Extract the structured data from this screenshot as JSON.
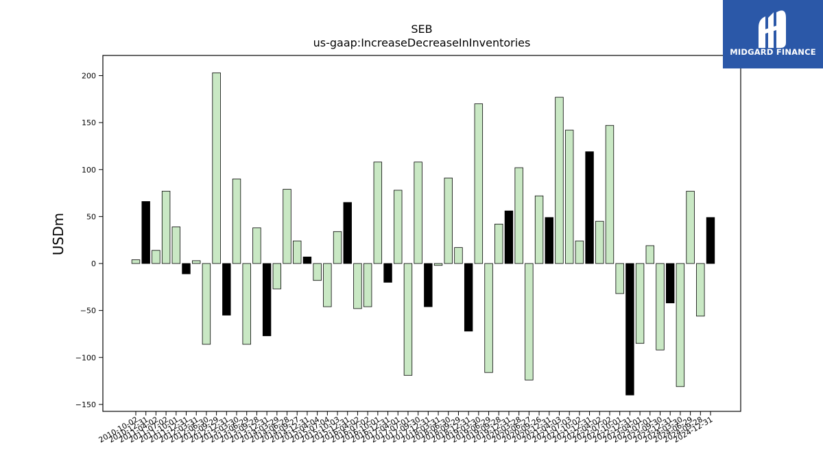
{
  "brand": {
    "name": "MIDGARD FINANCE",
    "logo_icon": "midgard-logo-icon",
    "background": "#2b58a8",
    "foreground": "#ffffff"
  },
  "chart_data": {
    "type": "bar",
    "title": "SEB",
    "subtitle": "us-gaap:IncreaseDecreaseInInventories",
    "xlabel": "",
    "ylabel": "USDm",
    "ylim": [
      -157,
      221
    ],
    "yticks": [
      -150,
      -100,
      -50,
      0,
      50,
      100,
      150,
      200
    ],
    "grid": false,
    "legend": "none",
    "colors": {
      "default": "#c9e8c4",
      "highlight": "#000000",
      "edge": "#000000"
    },
    "categories": [
      "2010-10-02",
      "2010-12-31",
      "2011-04-02",
      "2011-07-02",
      "2011-10-01",
      "2011-12-31",
      "2012-03-31",
      "2012-06-30",
      "2012-09-29",
      "2012-12-31",
      "2013-03-30",
      "2013-06-29",
      "2013-09-28",
      "2013-12-31",
      "2014-03-29",
      "2014-06-28",
      "2014-09-27",
      "2014-12-31",
      "2015-04-04",
      "2015-07-04",
      "2015-10-03",
      "2015-12-31",
      "2016-04-02",
      "2016-07-02",
      "2016-10-01",
      "2016-12-31",
      "2017-04-01",
      "2017-07-01",
      "2017-09-30",
      "2017-12-31",
      "2018-03-31",
      "2018-06-30",
      "2018-09-29",
      "2018-12-31",
      "2019-03-30",
      "2019-06-29",
      "2019-09-28",
      "2019-12-31",
      "2020-03-28",
      "2020-06-27",
      "2020-09-26",
      "2020-12-31",
      "2021-04-03",
      "2021-07-03",
      "2021-10-02",
      "2021-12-31",
      "2022-04-02",
      "2022-07-02",
      "2022-10-01",
      "2022-12-31",
      "2023-04-01",
      "2023-07-01",
      "2023-09-30",
      "2023-12-31",
      "2024-03-30",
      "2024-06-29",
      "2024-09-28",
      "2024-12-31"
    ],
    "values": [
      4,
      66,
      14,
      77,
      39,
      -11,
      3,
      -86,
      203,
      -55,
      90,
      -86,
      38,
      -77,
      -27,
      79,
      24,
      7,
      -18,
      -46,
      34,
      65,
      -48,
      -46,
      108,
      -20,
      78,
      -119,
      108,
      -46,
      -2,
      91,
      17,
      -72,
      170,
      -116,
      42,
      56,
      102,
      -124,
      72,
      49,
      177,
      142,
      24,
      119,
      45,
      147,
      -32,
      -140,
      -85,
      19,
      -92,
      -42,
      -131,
      77,
      -56,
      49
    ],
    "highlight": [
      false,
      true,
      false,
      false,
      false,
      true,
      false,
      false,
      false,
      true,
      false,
      false,
      false,
      true,
      false,
      false,
      false,
      true,
      false,
      false,
      false,
      true,
      false,
      false,
      false,
      true,
      false,
      false,
      false,
      true,
      false,
      false,
      false,
      true,
      false,
      false,
      false,
      true,
      false,
      false,
      false,
      true,
      false,
      false,
      false,
      true,
      false,
      false,
      false,
      true,
      false,
      false,
      false,
      true,
      false,
      false,
      false,
      true
    ]
  }
}
